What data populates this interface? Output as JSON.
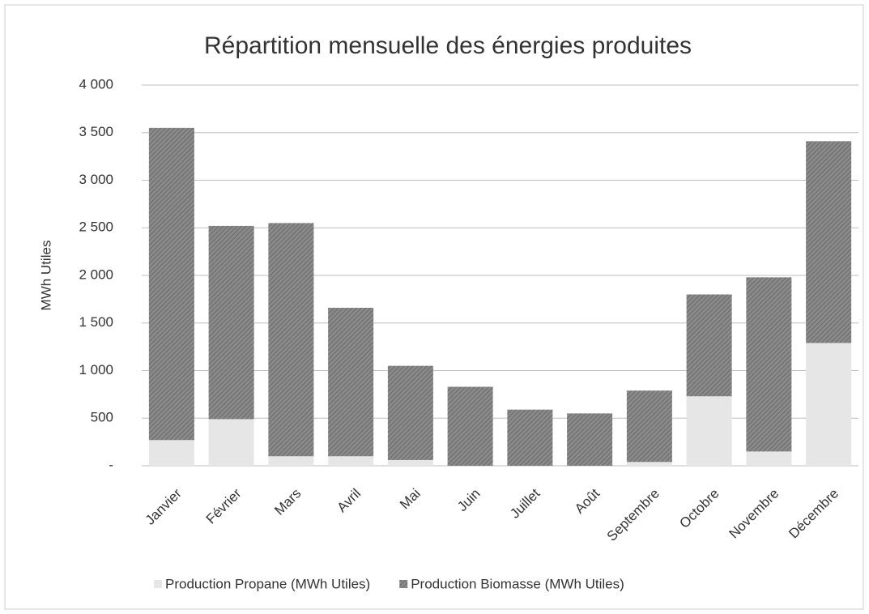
{
  "chart_data": {
    "type": "stacked_bar",
    "title": "Répartition mensuelle des énergies produites",
    "y_label": "MWh Utiles",
    "categories": [
      "Janvier",
      "Février",
      "Mars",
      "Avril",
      "Mai",
      "Juin",
      "Juillet",
      "Août",
      "Septembre",
      "Octobre",
      "Novembre",
      "Décembre"
    ],
    "series": [
      {
        "name": "Production Propane (MWh Utiles)",
        "color": "#e6e6e6",
        "values": [
          270,
          490,
          100,
          100,
          60,
          0,
          0,
          0,
          40,
          730,
          150,
          1290
        ]
      },
      {
        "name": "Production Biomasse (MWh Utiles)",
        "color": "#7a7a7a",
        "values": [
          3280,
          2030,
          2450,
          1560,
          990,
          830,
          590,
          550,
          750,
          1070,
          1830,
          2120
        ]
      }
    ],
    "ylim": [
      0,
      4000
    ],
    "yticks": [
      {
        "value": 0,
        "label": "-"
      },
      500,
      {
        "value": 1000,
        "label": "1 000"
      },
      {
        "value": 1500,
        "label": "1 500"
      },
      {
        "value": 2000,
        "label": "2 000"
      },
      {
        "value": 2500,
        "label": "2 500"
      },
      {
        "value": 3000,
        "label": "3 000"
      },
      {
        "value": 3500,
        "label": "3 500"
      },
      {
        "value": 4000,
        "label": "4 000"
      }
    ],
    "grid": true,
    "legend": "bottom"
  }
}
